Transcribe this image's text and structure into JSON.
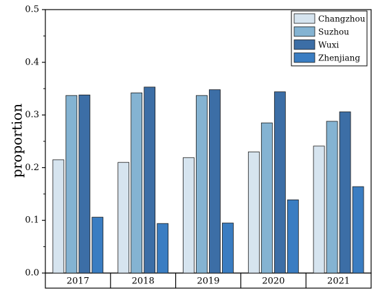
{
  "chart_data": {
    "type": "bar",
    "title": "",
    "xlabel": "",
    "ylabel": "proportion",
    "ylim": [
      0,
      0.5
    ],
    "yticks": [
      "0.0",
      "0.1",
      "0.2",
      "0.3",
      "0.4",
      "0.5"
    ],
    "grid": false,
    "legend_position": "top-right",
    "categories": [
      "2017",
      "2018",
      "2019",
      "2020",
      "2021"
    ],
    "series": [
      {
        "name": "Changzhou",
        "color": "#d6e4ef",
        "values": [
          0.215,
          0.21,
          0.219,
          0.23,
          0.241
        ]
      },
      {
        "name": "Suzhou",
        "color": "#84b3d2",
        "values": [
          0.337,
          0.342,
          0.337,
          0.285,
          0.288
        ]
      },
      {
        "name": "Wuxi",
        "color": "#3c6ea6",
        "values": [
          0.338,
          0.353,
          0.348,
          0.344,
          0.306
        ]
      },
      {
        "name": "Zhenjiang",
        "color": "#3a7dc2",
        "values": [
          0.106,
          0.094,
          0.095,
          0.139,
          0.164
        ]
      }
    ]
  }
}
